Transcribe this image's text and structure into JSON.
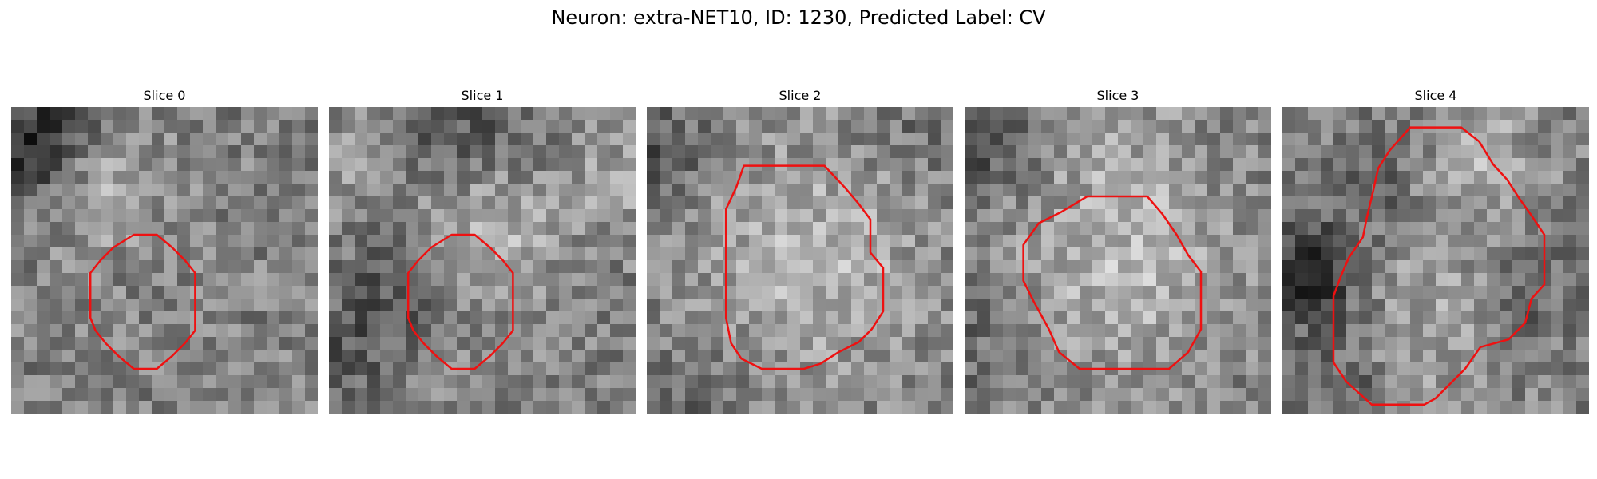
{
  "figure": {
    "title": "Neuron: extra-NET10, ID: 1230, Predicted Label: CV",
    "contour_color": "#ee1111",
    "colormap": "grayscale"
  },
  "slices": [
    {
      "label": "Slice 0"
    },
    {
      "label": "Slice 1"
    },
    {
      "label": "Slice 2"
    },
    {
      "label": "Slice 3"
    },
    {
      "label": "Slice 4"
    }
  ]
}
